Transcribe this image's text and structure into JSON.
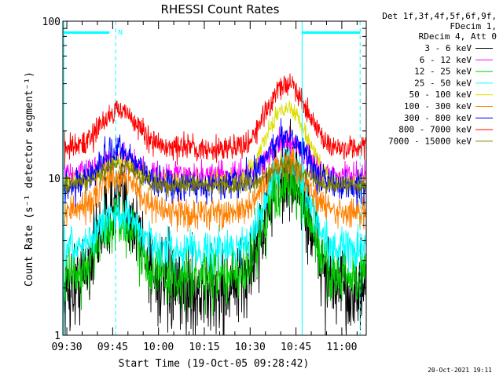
{
  "chart_data": {
    "type": "line",
    "title": "RHESSI Count Rates",
    "xlabel": "Start Time (19-Oct-05 09:28:42)",
    "ylabel": "Count Rate (s⁻¹ detector segment⁻¹)",
    "yscale": "log",
    "ylim": [
      1,
      100
    ],
    "xlim": [
      "09:28:42",
      "11:08:00"
    ],
    "x_ticks": [
      "09:30",
      "09:45",
      "10:00",
      "10:15",
      "10:30",
      "10:45",
      "11:00"
    ],
    "y_tick_labels": [
      "1",
      "10",
      "100"
    ],
    "legend_header": [
      "Det 1f,3f,4f,5f,6f,9f,",
      "FDecim 1,",
      "RDecim 4, Att 0"
    ],
    "legend_position": "top-right outside plot",
    "footer_date": "20-Oct-2021 19:11",
    "attenuator_label": "N",
    "intervals": [
      {
        "start": "09:29:00",
        "end": "09:46:00",
        "label": "N"
      },
      {
        "start": "10:47:00",
        "end": "11:06:00",
        "label": ""
      }
    ],
    "series": [
      {
        "name": "3 - 6 keV",
        "color": "#000000",
        "base": 1.9,
        "peak1": 7.0,
        "peak2": 10.5,
        "noise": 0.14
      },
      {
        "name": "6 - 12 keV",
        "color": "#ff00ff",
        "base": 10.5,
        "peak1": 13.5,
        "peak2": 17.0,
        "noise": 0.04
      },
      {
        "name": "12 - 25 keV",
        "color": "#00cc00",
        "base": 2.3,
        "peak1": 5.3,
        "peak2": 9.5,
        "noise": 0.09
      },
      {
        "name": "25 - 50 keV",
        "color": "#00ffff",
        "base": 3.5,
        "peak1": 6.0,
        "peak2": 12.5,
        "noise": 0.06
      },
      {
        "name": "50 - 100 keV",
        "color": "#dddd00",
        "base": 9.5,
        "peak1": 13.0,
        "peak2": 28.0,
        "noise": 0.03
      },
      {
        "name": "100 - 300 keV",
        "color": "#ff8000",
        "base": 6.0,
        "peak1": 10.5,
        "peak2": 13.0,
        "noise": 0.05
      },
      {
        "name": "300 - 800 keV",
        "color": "#0000ff",
        "base": 9.0,
        "peak1": 15.0,
        "peak2": 19.0,
        "noise": 0.05
      },
      {
        "name": "800 - 7000 keV",
        "color": "#ff0000",
        "base": 15.5,
        "peak1": 27.0,
        "peak2": 40.0,
        "noise": 0.04
      },
      {
        "name": "7000 - 15000 keV",
        "color": "#808000",
        "base": 9.0,
        "peak1": 12.0,
        "peak2": 12.0,
        "noise": 0.03
      }
    ]
  }
}
